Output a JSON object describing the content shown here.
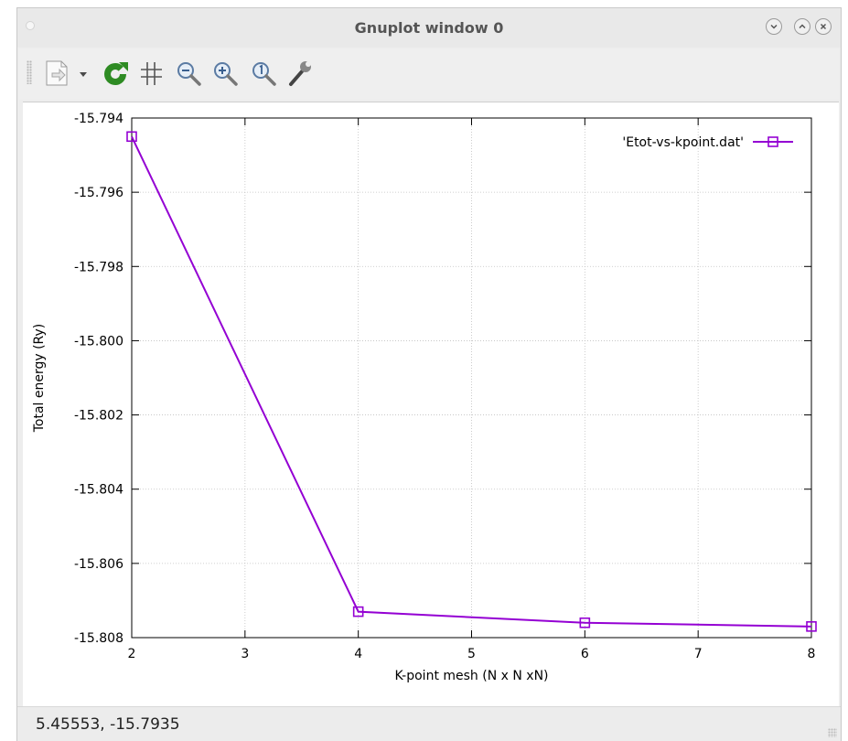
{
  "window": {
    "title": "Gnuplot window 0",
    "controls": [
      "minimize",
      "maximize",
      "close"
    ]
  },
  "toolbar": {
    "buttons": [
      {
        "name": "export-icon"
      },
      {
        "name": "replot-icon"
      },
      {
        "name": "grid-icon"
      },
      {
        "name": "zoom-out-icon"
      },
      {
        "name": "zoom-in-icon"
      },
      {
        "name": "zoom-reset-icon"
      },
      {
        "name": "settings-icon"
      }
    ]
  },
  "status": {
    "coordinates": "5.45553, -15.7935"
  },
  "colors": {
    "series": "#9400d3",
    "grid": "#c0c0c0"
  },
  "chart_data": {
    "type": "line",
    "title": "",
    "xlabel": "K-point mesh (N x N xN)",
    "ylabel": "Total energy (Ry)",
    "xlim": [
      2,
      8
    ],
    "ylim": [
      -15.808,
      -15.794
    ],
    "xticks": [
      2,
      3,
      4,
      5,
      6,
      7,
      8
    ],
    "xtick_labels": [
      "2",
      "3",
      "4",
      "5",
      "6",
      "7",
      "8"
    ],
    "yticks": [
      -15.794,
      -15.796,
      -15.798,
      -15.8,
      -15.802,
      -15.804,
      -15.806,
      -15.808
    ],
    "ytick_labels": [
      "-15.794",
      "-15.796",
      "-15.798",
      "-15.800",
      "-15.802",
      "-15.804",
      "-15.806",
      "-15.808"
    ],
    "grid": true,
    "legend_position": "top-right",
    "series": [
      {
        "name": "'Etot-vs-kpoint.dat'",
        "marker": "square",
        "x": [
          2,
          4,
          6,
          8
        ],
        "y": [
          -15.7945,
          -15.8073,
          -15.8076,
          -15.8077
        ]
      }
    ]
  }
}
